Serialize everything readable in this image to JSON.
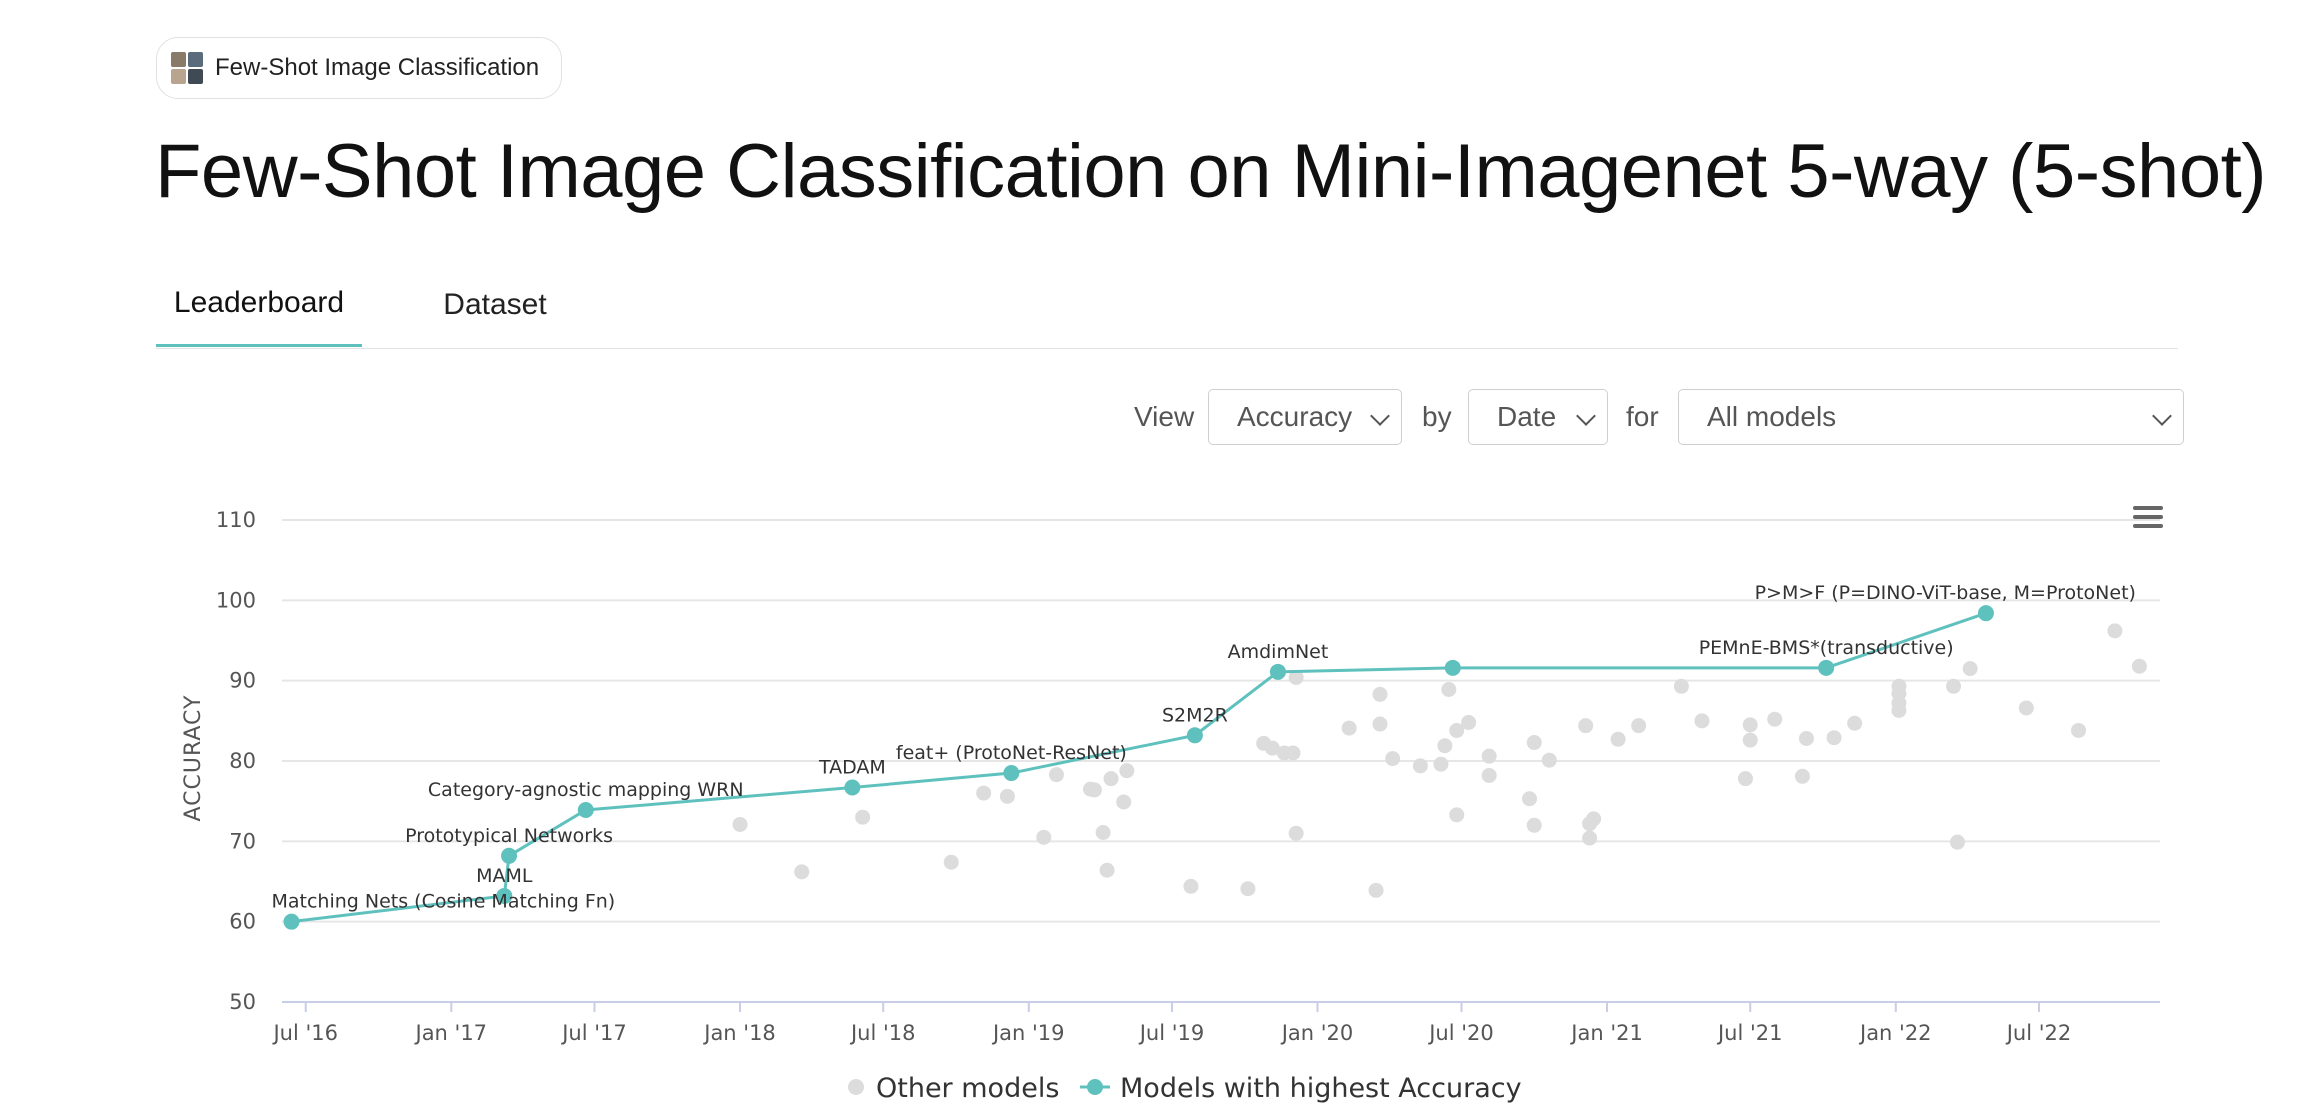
{
  "task": {
    "label": "Few-Shot Image Classification",
    "thumb_colors": [
      "#8a7a6a",
      "#5a6b7c",
      "#b8a48f",
      "#3f4a55"
    ]
  },
  "page": {
    "title": "Few-Shot Image Classification on Mini-Imagenet 5-way (5-shot)"
  },
  "tabs": [
    {
      "label": "Leaderboard",
      "active": true
    },
    {
      "label": "Dataset",
      "active": false
    }
  ],
  "controls": {
    "view_label": "View",
    "metric": "Accuracy",
    "by_label": "by",
    "x_axis": "Date",
    "for_label": "for",
    "filter": "All models"
  },
  "menu_icon": "hamburger-menu-icon",
  "colors": {
    "accent": "#5fc1bd",
    "other": "#dcdcdc",
    "grid": "#e6e6e6",
    "axis": "#c8cde8"
  },
  "chart_data": {
    "type": "scatter",
    "ylabel": "ACCURACY",
    "xlabel": "",
    "ylim": [
      50,
      110
    ],
    "yticks": [
      50,
      60,
      70,
      80,
      90,
      100,
      110
    ],
    "xlim": [
      "2016-06-01",
      "2022-12-01"
    ],
    "xticks": [
      {
        "date": "2016-07-01",
        "label": "Jul '16"
      },
      {
        "date": "2017-01-01",
        "label": "Jan '17"
      },
      {
        "date": "2017-07-01",
        "label": "Jul '17"
      },
      {
        "date": "2018-01-01",
        "label": "Jan '18"
      },
      {
        "date": "2018-07-01",
        "label": "Jul '18"
      },
      {
        "date": "2019-01-01",
        "label": "Jan '19"
      },
      {
        "date": "2019-07-01",
        "label": "Jul '19"
      },
      {
        "date": "2020-01-01",
        "label": "Jan '20"
      },
      {
        "date": "2020-07-01",
        "label": "Jul '20"
      },
      {
        "date": "2021-01-01",
        "label": "Jan '21"
      },
      {
        "date": "2021-07-01",
        "label": "Jul '21"
      },
      {
        "date": "2022-01-01",
        "label": "Jan '22"
      },
      {
        "date": "2022-07-01",
        "label": "Jul '22"
      }
    ],
    "grid": true,
    "legend": {
      "position": "bottom-center",
      "entries": [
        "Other models",
        "Models with highest Accuracy"
      ]
    },
    "series": [
      {
        "name": "Models with highest Accuracy",
        "points": [
          {
            "date": "2016-06-13",
            "y": 60.0,
            "label": "Matching Nets (Cosine Matching Fn)"
          },
          {
            "date": "2017-03-09",
            "y": 63.2,
            "label": "MAML"
          },
          {
            "date": "2017-03-15",
            "y": 68.2,
            "label": "Prototypical Networks"
          },
          {
            "date": "2017-06-20",
            "y": 73.9,
            "label": "Category-agnostic mapping WRN"
          },
          {
            "date": "2018-05-23",
            "y": 76.7,
            "label": "TADAM"
          },
          {
            "date": "2018-12-10",
            "y": 78.5,
            "label": "feat+ (ProtoNet-ResNet)"
          },
          {
            "date": "2019-07-30",
            "y": 83.2,
            "label": "S2M2R"
          },
          {
            "date": "2019-11-12",
            "y": 91.1,
            "label": "AmdimNet"
          },
          {
            "date": "2020-06-20",
            "y": 91.6,
            "label": ""
          },
          {
            "date": "2021-10-05",
            "y": 91.6,
            "label": "PEMnE-BMS*(transductive)"
          },
          {
            "date": "2022-04-25",
            "y": 98.4,
            "label": "P>M>F (P=DINO-ViT-base, M=ProtoNet)"
          }
        ]
      },
      {
        "name": "Other models",
        "points": [
          {
            "date": "2018-01-01",
            "y": 72.1
          },
          {
            "date": "2018-03-20",
            "y": 66.2
          },
          {
            "date": "2018-06-05",
            "y": 73.0
          },
          {
            "date": "2018-09-25",
            "y": 67.4
          },
          {
            "date": "2018-11-05",
            "y": 76.0
          },
          {
            "date": "2018-12-05",
            "y": 75.6
          },
          {
            "date": "2019-01-20",
            "y": 70.5
          },
          {
            "date": "2019-02-05",
            "y": 78.3
          },
          {
            "date": "2019-03-20",
            "y": 76.5
          },
          {
            "date": "2019-04-05",
            "y": 71.1
          },
          {
            "date": "2019-04-10",
            "y": 66.4
          },
          {
            "date": "2019-03-25",
            "y": 76.4
          },
          {
            "date": "2019-04-15",
            "y": 77.8
          },
          {
            "date": "2019-05-01",
            "y": 74.9
          },
          {
            "date": "2019-05-05",
            "y": 78.8
          },
          {
            "date": "2019-07-25",
            "y": 64.4
          },
          {
            "date": "2019-10-05",
            "y": 64.1
          },
          {
            "date": "2019-10-25",
            "y": 82.2
          },
          {
            "date": "2019-11-05",
            "y": 81.6
          },
          {
            "date": "2019-11-20",
            "y": 81.0
          },
          {
            "date": "2019-12-01",
            "y": 81.0
          },
          {
            "date": "2019-12-05",
            "y": 90.4
          },
          {
            "date": "2019-12-05",
            "y": 71.0
          },
          {
            "date": "2020-02-10",
            "y": 84.1
          },
          {
            "date": "2020-03-15",
            "y": 63.9
          },
          {
            "date": "2020-03-20",
            "y": 88.3
          },
          {
            "date": "2020-03-20",
            "y": 84.6
          },
          {
            "date": "2020-04-05",
            "y": 80.3
          },
          {
            "date": "2020-05-10",
            "y": 79.4
          },
          {
            "date": "2020-06-05",
            "y": 79.6
          },
          {
            "date": "2020-06-10",
            "y": 81.9
          },
          {
            "date": "2020-06-15",
            "y": 88.9
          },
          {
            "date": "2020-06-25",
            "y": 83.8
          },
          {
            "date": "2020-06-25",
            "y": 73.3
          },
          {
            "date": "2020-07-10",
            "y": 84.8
          },
          {
            "date": "2020-08-05",
            "y": 80.6
          },
          {
            "date": "2020-08-05",
            "y": 78.2
          },
          {
            "date": "2020-09-25",
            "y": 75.3
          },
          {
            "date": "2020-10-01",
            "y": 82.3
          },
          {
            "date": "2020-10-01",
            "y": 72.0
          },
          {
            "date": "2020-10-20",
            "y": 80.1
          },
          {
            "date": "2020-12-05",
            "y": 84.4
          },
          {
            "date": "2020-12-10",
            "y": 72.2
          },
          {
            "date": "2020-12-15",
            "y": 72.8
          },
          {
            "date": "2020-12-10",
            "y": 70.4
          },
          {
            "date": "2021-01-15",
            "y": 82.7
          },
          {
            "date": "2021-02-10",
            "y": 84.4
          },
          {
            "date": "2021-04-05",
            "y": 89.3
          },
          {
            "date": "2021-05-01",
            "y": 85.0
          },
          {
            "date": "2021-06-25",
            "y": 77.8
          },
          {
            "date": "2021-07-01",
            "y": 84.5
          },
          {
            "date": "2021-07-01",
            "y": 82.6
          },
          {
            "date": "2021-08-01",
            "y": 85.2
          },
          {
            "date": "2021-09-05",
            "y": 78.1
          },
          {
            "date": "2021-09-10",
            "y": 82.8
          },
          {
            "date": "2021-10-15",
            "y": 82.9
          },
          {
            "date": "2021-11-10",
            "y": 84.7
          },
          {
            "date": "2022-01-05",
            "y": 89.3
          },
          {
            "date": "2022-01-05",
            "y": 88.4
          },
          {
            "date": "2022-01-05",
            "y": 87.2
          },
          {
            "date": "2022-01-05",
            "y": 86.3
          },
          {
            "date": "2022-03-15",
            "y": 89.3
          },
          {
            "date": "2022-03-20",
            "y": 69.9
          },
          {
            "date": "2022-04-05",
            "y": 91.5
          },
          {
            "date": "2022-06-15",
            "y": 86.6
          },
          {
            "date": "2022-08-20",
            "y": 83.8
          },
          {
            "date": "2022-10-05",
            "y": 96.2
          },
          {
            "date": "2022-11-05",
            "y": 91.8
          }
        ]
      }
    ]
  }
}
